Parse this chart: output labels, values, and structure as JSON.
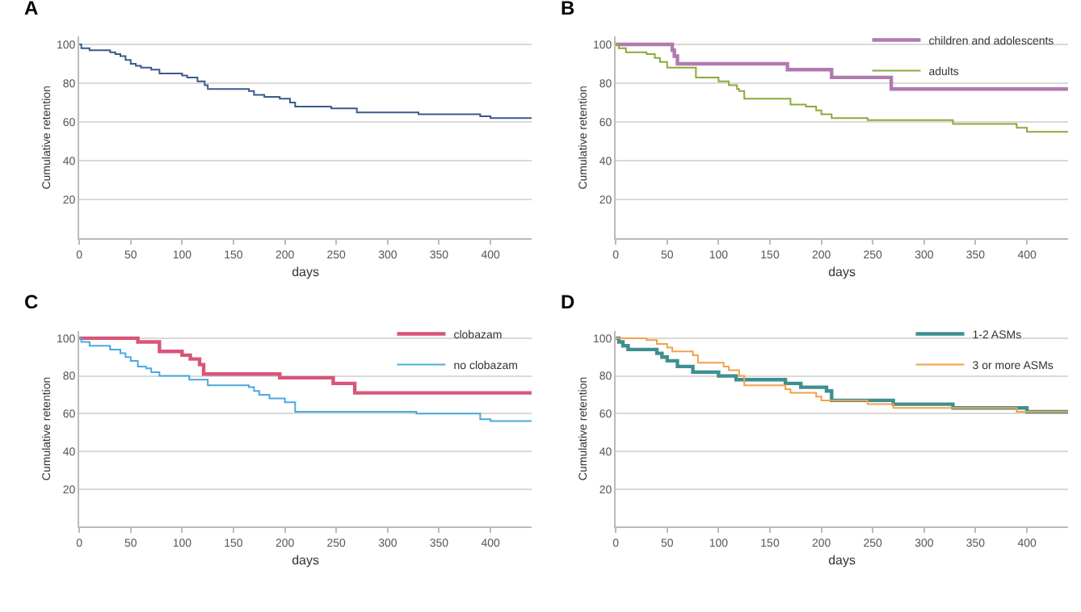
{
  "chart_data": [
    {
      "type": "step",
      "title": "A",
      "xlabel": "days",
      "ylabel": "Cumulative retention",
      "xlim": [
        0,
        440
      ],
      "xticks": [
        0,
        50,
        100,
        150,
        200,
        250,
        300,
        350,
        400
      ],
      "ylim": [
        0,
        104
      ],
      "yticks": [
        20,
        40,
        60,
        80,
        100
      ],
      "grid": "y",
      "legend": false,
      "series": [
        {
          "color": "#3b5a8c",
          "x": [
            0,
            2,
            10,
            30,
            35,
            40,
            45,
            50,
            55,
            60,
            70,
            78,
            100,
            105,
            115,
            122,
            125,
            165,
            170,
            180,
            195,
            205,
            210,
            245,
            270,
            330,
            390,
            400,
            440
          ],
          "values": [
            100,
            98,
            97,
            96,
            95,
            94,
            92,
            90,
            89,
            88,
            87,
            85,
            84,
            83,
            81,
            79,
            77,
            76,
            74,
            73,
            72,
            70,
            68,
            67,
            65,
            64,
            63,
            62,
            62
          ]
        }
      ]
    },
    {
      "type": "step",
      "title": "B",
      "xlabel": "days",
      "ylabel": "Cumulative retention",
      "xlim": [
        0,
        440
      ],
      "xticks": [
        0,
        50,
        100,
        150,
        200,
        250,
        300,
        350,
        400
      ],
      "ylim": [
        0,
        104
      ],
      "yticks": [
        20,
        40,
        60,
        80,
        100
      ],
      "grid": "y",
      "legend": "top right",
      "series": [
        {
          "name": "children and adolescents",
          "color": "#b07ab0",
          "x": [
            0,
            55,
            57,
            60,
            167,
            210,
            268,
            440
          ],
          "values": [
            100,
            97,
            94,
            90,
            87,
            83,
            77,
            77
          ]
        },
        {
          "name": "adults",
          "color": "#8aaa3a",
          "x": [
            0,
            3,
            10,
            30,
            38,
            43,
            50,
            78,
            100,
            110,
            118,
            120,
            125,
            170,
            185,
            195,
            200,
            210,
            245,
            328,
            390,
            400,
            440
          ],
          "values": [
            100,
            98,
            96,
            95,
            93,
            91,
            88,
            83,
            81,
            79,
            77,
            76,
            72,
            69,
            68,
            66,
            64,
            62,
            61,
            59,
            57,
            55,
            55
          ]
        }
      ]
    },
    {
      "type": "step",
      "title": "C",
      "xlabel": "days",
      "ylabel": "Cumulative retention",
      "xlim": [
        0,
        440
      ],
      "xticks": [
        0,
        50,
        100,
        150,
        200,
        250,
        300,
        350,
        400
      ],
      "ylim": [
        0,
        104
      ],
      "yticks": [
        20,
        40,
        60,
        80,
        100
      ],
      "grid": "y",
      "legend": "top right",
      "series": [
        {
          "name": "clobazam",
          "color": "#d9557a",
          "x": [
            0,
            57,
            78,
            100,
            108,
            117,
            121,
            195,
            247,
            268,
            440
          ],
          "values": [
            100,
            98,
            93,
            91,
            89,
            86,
            81,
            79,
            76,
            71,
            71
          ]
        },
        {
          "name": "no clobazam",
          "color": "#4aa8e0",
          "x": [
            0,
            2,
            10,
            30,
            40,
            45,
            50,
            57,
            65,
            70,
            78,
            107,
            125,
            165,
            170,
            175,
            185,
            200,
            210,
            328,
            390,
            400,
            440
          ],
          "values": [
            100,
            98,
            96,
            94,
            92,
            90,
            88,
            85,
            84,
            82,
            80,
            78,
            75,
            74,
            72,
            70,
            68,
            66,
            61,
            60,
            57,
            56,
            56
          ]
        }
      ]
    },
    {
      "type": "step",
      "title": "D",
      "xlabel": "days",
      "ylabel": "Cumulative retention",
      "xlim": [
        0,
        440
      ],
      "xticks": [
        0,
        50,
        100,
        150,
        200,
        250,
        300,
        350,
        400
      ],
      "ylim": [
        0,
        104
      ],
      "yticks": [
        20,
        40,
        60,
        80,
        100
      ],
      "grid": "y",
      "legend": "top right",
      "series": [
        {
          "name": "1-2 ASMs",
          "color": "#3f8f8f",
          "x": [
            0,
            3,
            7,
            12,
            40,
            45,
            50,
            60,
            75,
            100,
            117,
            165,
            180,
            205,
            210,
            270,
            328,
            400,
            440
          ],
          "values": [
            100,
            98,
            96,
            94,
            92,
            90,
            88,
            85,
            82,
            80,
            78,
            76,
            74,
            72,
            67,
            65,
            63,
            61,
            61
          ]
        },
        {
          "name": "3 or more ASMs",
          "color": "#f5a04a",
          "x": [
            0,
            30,
            40,
            50,
            55,
            75,
            80,
            105,
            110,
            120,
            125,
            165,
            170,
            195,
            200,
            245,
            270,
            390,
            440
          ],
          "values": [
            100,
            99,
            97,
            95,
            93,
            91,
            87,
            85,
            83,
            80,
            75,
            73,
            71,
            69,
            67,
            65,
            63,
            61,
            61
          ]
        }
      ]
    }
  ]
}
